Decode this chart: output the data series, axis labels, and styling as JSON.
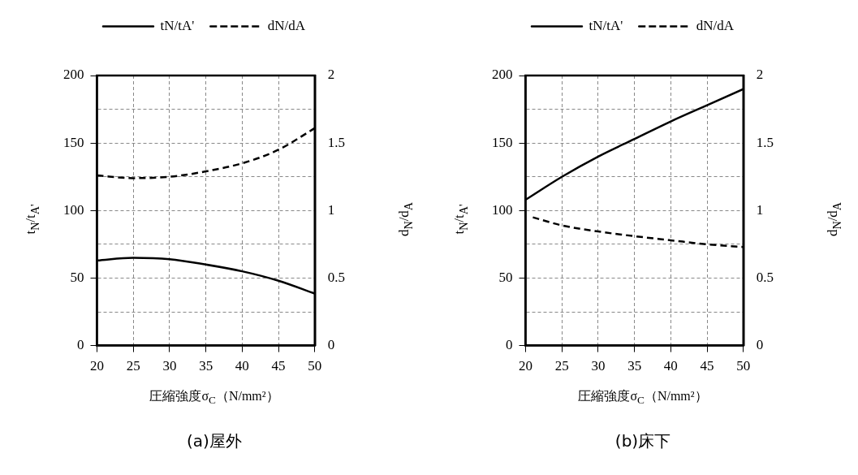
{
  "chart_data": [
    {
      "type": "line",
      "title": "(a)屋外",
      "xlabel": "圧縮強度σ$_{C}$（N/mm²）",
      "ylabel": "t$_{N}$/t$_{A'}$",
      "y2label": "d$_{N}$/d$_{A}$",
      "xlim": [
        20,
        50
      ],
      "xticks": [
        20,
        25,
        30,
        35,
        40,
        45,
        50
      ],
      "ylim": [
        0,
        200
      ],
      "yticks": [
        0,
        {
          "value": 25,
          "label": null
        },
        50,
        {
          "value": 75,
          "label": null
        },
        100,
        {
          "value": 125,
          "label": null
        },
        150,
        {
          "value": 175,
          "label": null
        },
        200
      ],
      "y2lim": [
        0,
        2
      ],
      "y2ticks": [
        0,
        0.5,
        1,
        1.5,
        2
      ],
      "grid": true,
      "legend": "top",
      "marker": "none",
      "series": [
        {
          "name": "tN/tA'",
          "color": "#000000",
          "line_style": "solid",
          "x": [
            20,
            25,
            30,
            35,
            40,
            45,
            50
          ],
          "values": [
            63,
            65,
            64,
            60,
            55,
            48,
            38.5
          ]
        },
        {
          "name": "dN/dA",
          "color": "#000000",
          "line_style": "dashed",
          "axis": "y2",
          "x": [
            20,
            25,
            30,
            35,
            40,
            45,
            50
          ],
          "values": [
            1.26,
            1.24,
            1.25,
            1.29,
            1.35,
            1.45,
            1.61
          ]
        }
      ]
    },
    {
      "type": "line",
      "title": "(b)床下",
      "xlabel": "圧縮強度σ$_{C}$（N/mm²）",
      "ylabel": "t$_{N}$/t$_{A'}$",
      "y2label": "d$_{N}$/d$_{A}$",
      "xlim": [
        20,
        50
      ],
      "xticks": [
        20,
        25,
        30,
        35,
        40,
        45,
        50
      ],
      "ylim": [
        0,
        200
      ],
      "yticks": [
        0,
        {
          "value": 25,
          "label": null
        },
        50,
        {
          "value": 75,
          "label": null
        },
        100,
        {
          "value": 125,
          "label": null
        },
        150,
        {
          "value": 175,
          "label": null
        },
        200
      ],
      "y2lim": [
        0,
        2
      ],
      "y2ticks": [
        0,
        0.5,
        1,
        1.5,
        2
      ],
      "grid": true,
      "legend": "top",
      "marker": "none",
      "series": [
        {
          "name": "tN/tA'",
          "color": "#000000",
          "line_style": "solid",
          "x": [
            20,
            25,
            30,
            35,
            40,
            45,
            50
          ],
          "values": [
            108,
            125,
            140,
            153,
            166,
            178,
            190
          ]
        },
        {
          "name": "dN/dA",
          "color": "#000000",
          "line_style": "dashed",
          "axis": "y2",
          "x": [
            21,
            25,
            30,
            35,
            40,
            45,
            50
          ],
          "values": [
            0.95,
            0.89,
            0.845,
            0.81,
            0.78,
            0.75,
            0.73
          ]
        }
      ]
    }
  ]
}
